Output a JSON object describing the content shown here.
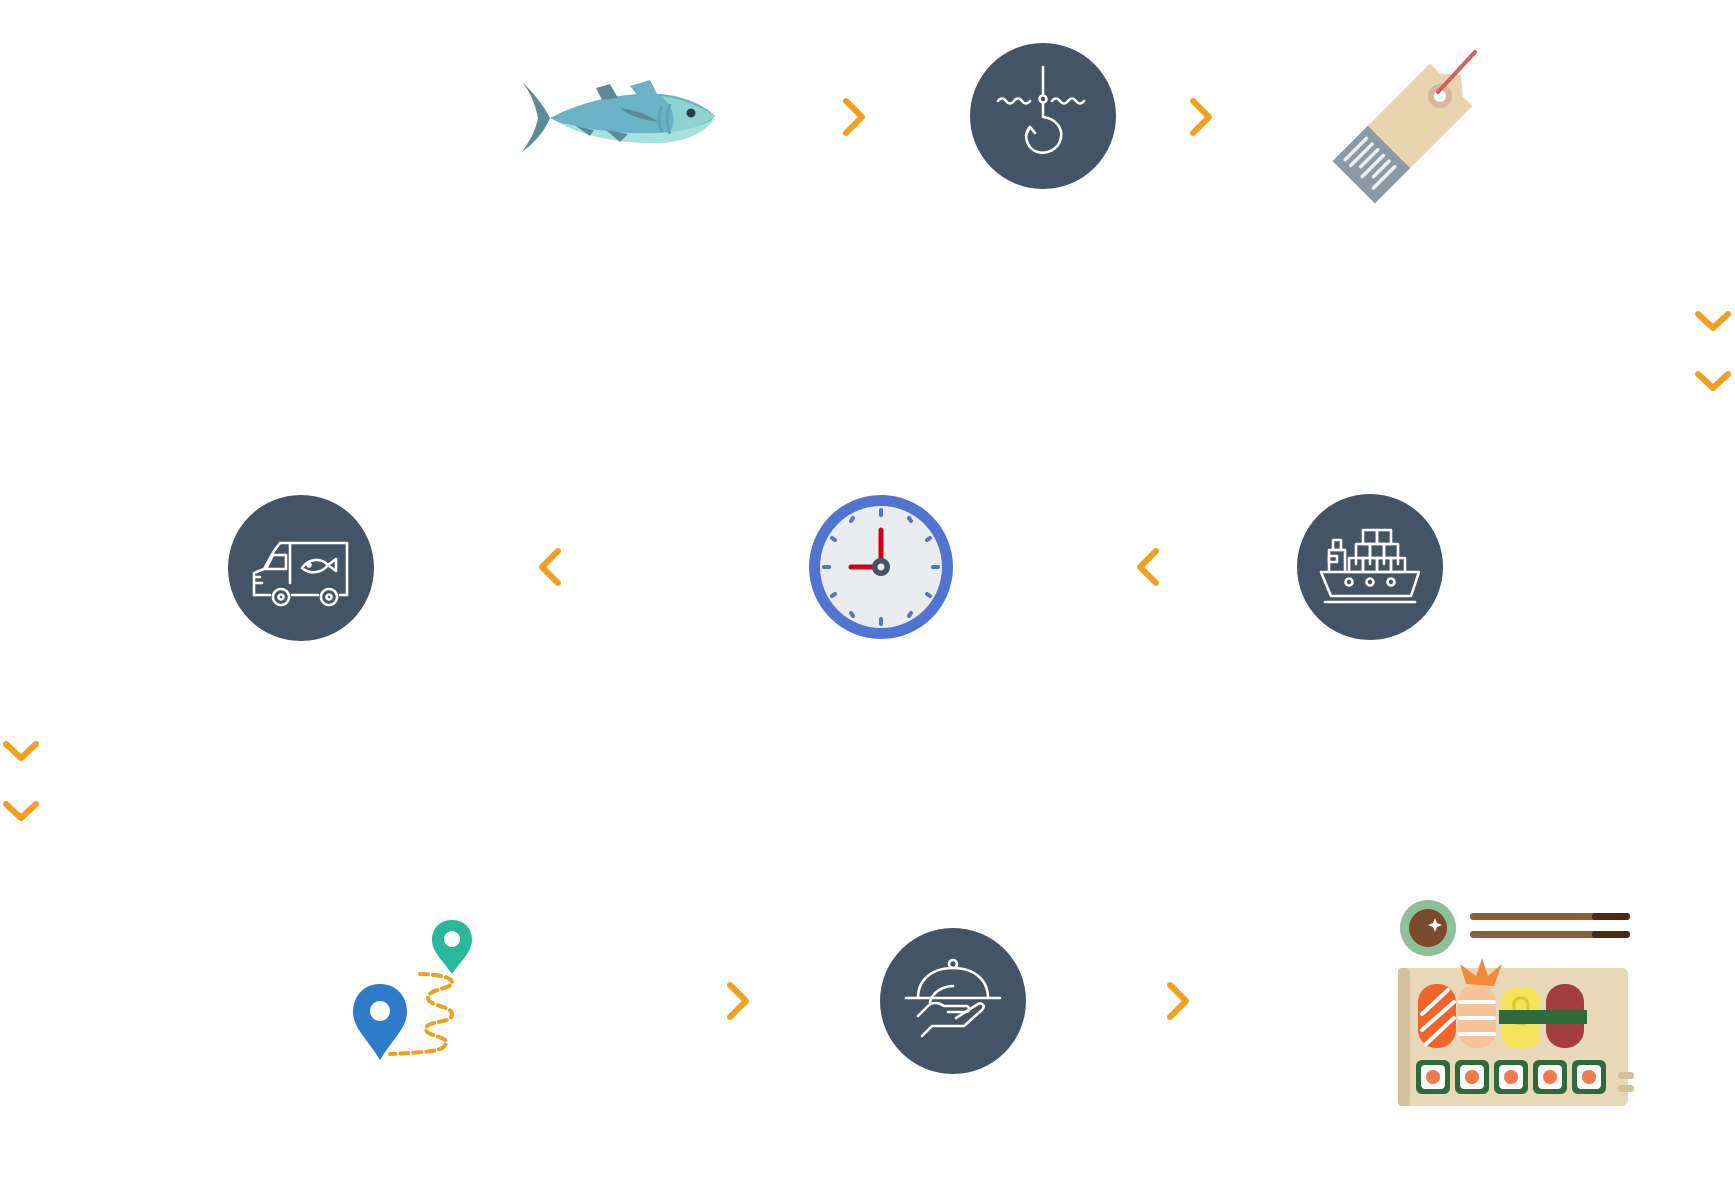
{
  "diagram": {
    "steps": [
      {
        "icon": "tuna-fish-icon"
      },
      {
        "icon": "fishing-hook-icon"
      },
      {
        "icon": "price-tag-icon"
      },
      {
        "icon": "cargo-ship-icon"
      },
      {
        "icon": "clock-icon"
      },
      {
        "icon": "delivery-van-icon"
      },
      {
        "icon": "map-route-icon"
      },
      {
        "icon": "food-service-icon"
      },
      {
        "icon": "sushi-platter-icon"
      }
    ],
    "connectors": [
      "chevron-right",
      "chevron-right",
      "double-chevron-down",
      "chevron-left",
      "chevron-left",
      "double-chevron-down",
      "chevron-right",
      "chevron-right"
    ]
  },
  "colors": {
    "circle": "#425466",
    "arrow": "#F09F1E",
    "icon_line": "#ffffff",
    "clock_ring": "#5274D1",
    "clock_face": "#E9EDEF",
    "clock_hand": "#D0021B"
  }
}
